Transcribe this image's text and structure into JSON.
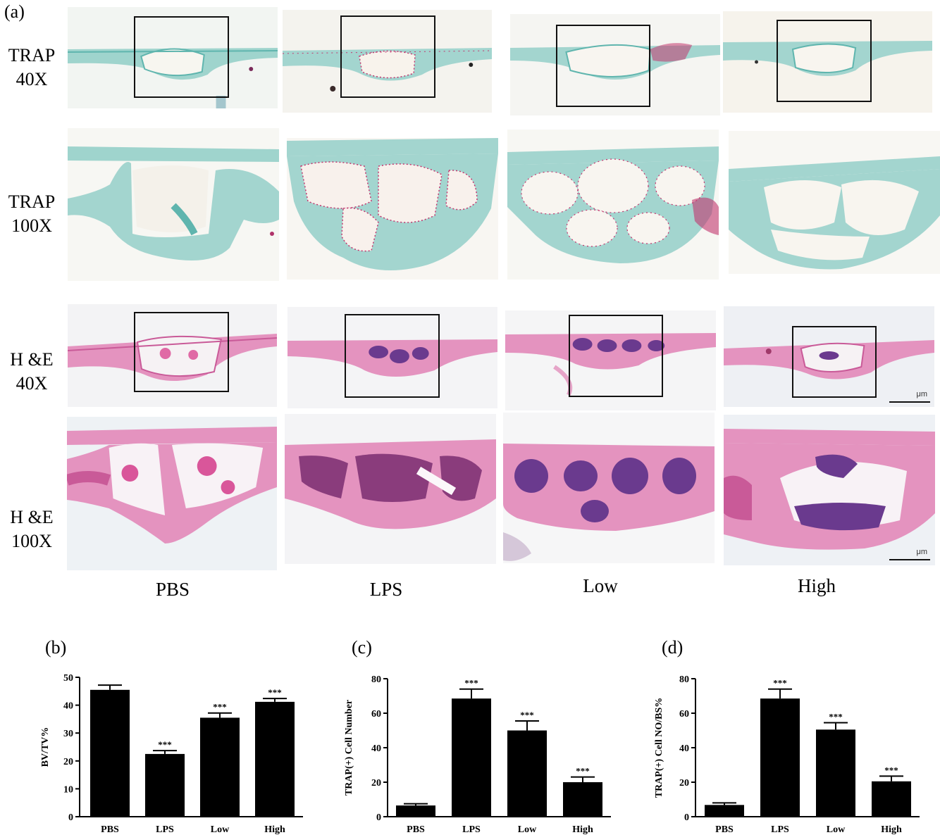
{
  "figure": {
    "panel_a_label": "(a)",
    "row_labels": [
      {
        "line1": "TRAP",
        "line2": "40X"
      },
      {
        "line1": "TRAP",
        "line2": "100X"
      },
      {
        "line1": "H &E",
        "line2": "40X"
      },
      {
        "line1": "H &E",
        "line2": "100X"
      }
    ],
    "group_labels": [
      "PBS",
      "LPS",
      "Low",
      "High"
    ],
    "scale_unit": "μm",
    "colors": {
      "trap_bone": "#8ecdc6",
      "trap_bone_dark": "#5fb5ae",
      "trap_stain": "#c2366e",
      "he_bone": "#e493bf",
      "he_bone_dark": "#c95a98",
      "he_marrow": "#6a3a8e",
      "background": "#f7f5ef"
    }
  },
  "chart_data": [
    {
      "type": "bar",
      "panel_label": "(b)",
      "categories": [
        "PBS",
        "LPS",
        "Low",
        "High"
      ],
      "values": [
        45.5,
        22.5,
        35.5,
        41.2
      ],
      "errors": [
        1.7,
        1.2,
        1.7,
        1.2
      ],
      "significance": [
        "",
        "***",
        "***",
        "***"
      ],
      "ylabel": "BV/TV%",
      "ylim": [
        0,
        50
      ],
      "yticks": [
        0,
        10,
        20,
        30,
        40,
        50
      ],
      "bar_color": "#000000"
    },
    {
      "type": "bar",
      "panel_label": "(c)",
      "categories": [
        "PBS",
        "LPS",
        "Low",
        "High"
      ],
      "values": [
        6.5,
        68.5,
        50,
        20
      ],
      "errors": [
        1,
        5.5,
        5.5,
        3
      ],
      "significance": [
        "",
        "***",
        "***",
        "***"
      ],
      "ylabel": "TRAP(+) Cell Number",
      "ylim": [
        0,
        80
      ],
      "yticks": [
        0,
        20,
        40,
        60,
        80
      ],
      "bar_color": "#000000"
    },
    {
      "type": "bar",
      "panel_label": "(d)",
      "categories": [
        "PBS",
        "LPS",
        "Low",
        "High"
      ],
      "values": [
        6.8,
        68.5,
        50.5,
        20.5
      ],
      "errors": [
        1.2,
        5.5,
        4,
        3
      ],
      "significance": [
        "",
        "***",
        "***",
        "***"
      ],
      "ylabel": "TRAP(+) Cell NO/BS%",
      "ylim": [
        0,
        80
      ],
      "yticks": [
        0,
        20,
        40,
        60,
        80
      ],
      "bar_color": "#000000"
    }
  ]
}
